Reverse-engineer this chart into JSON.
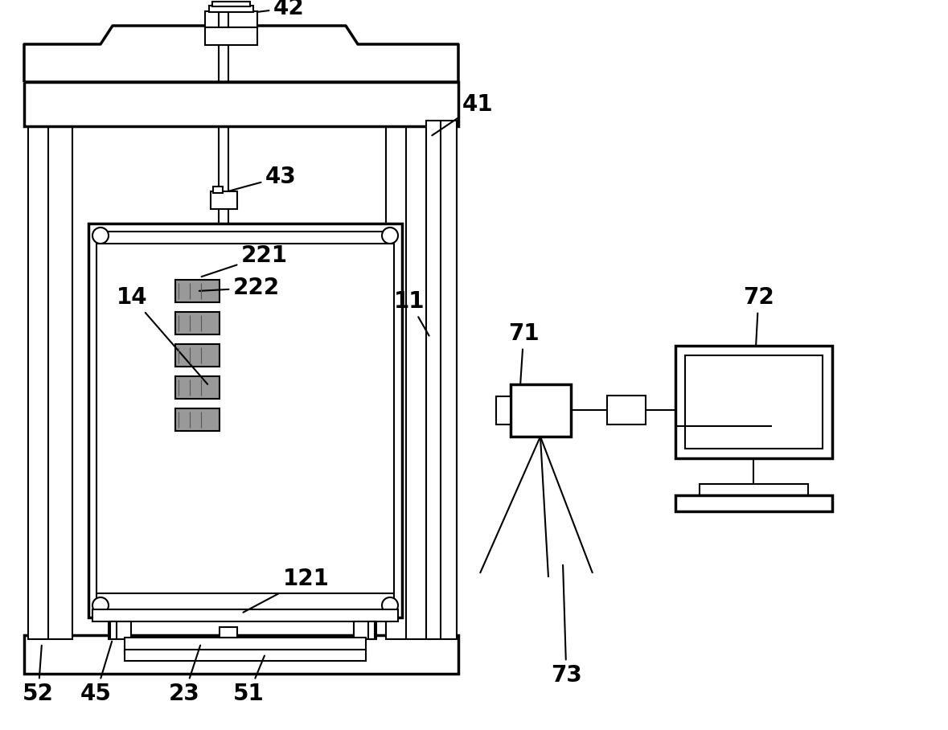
{
  "bg_color": "#ffffff",
  "lc": "#000000",
  "lw": 1.5,
  "tlw": 2.5,
  "sensor_color": "#aaaaaa",
  "fig_w": 11.79,
  "fig_h": 9.08,
  "dpi": 100
}
